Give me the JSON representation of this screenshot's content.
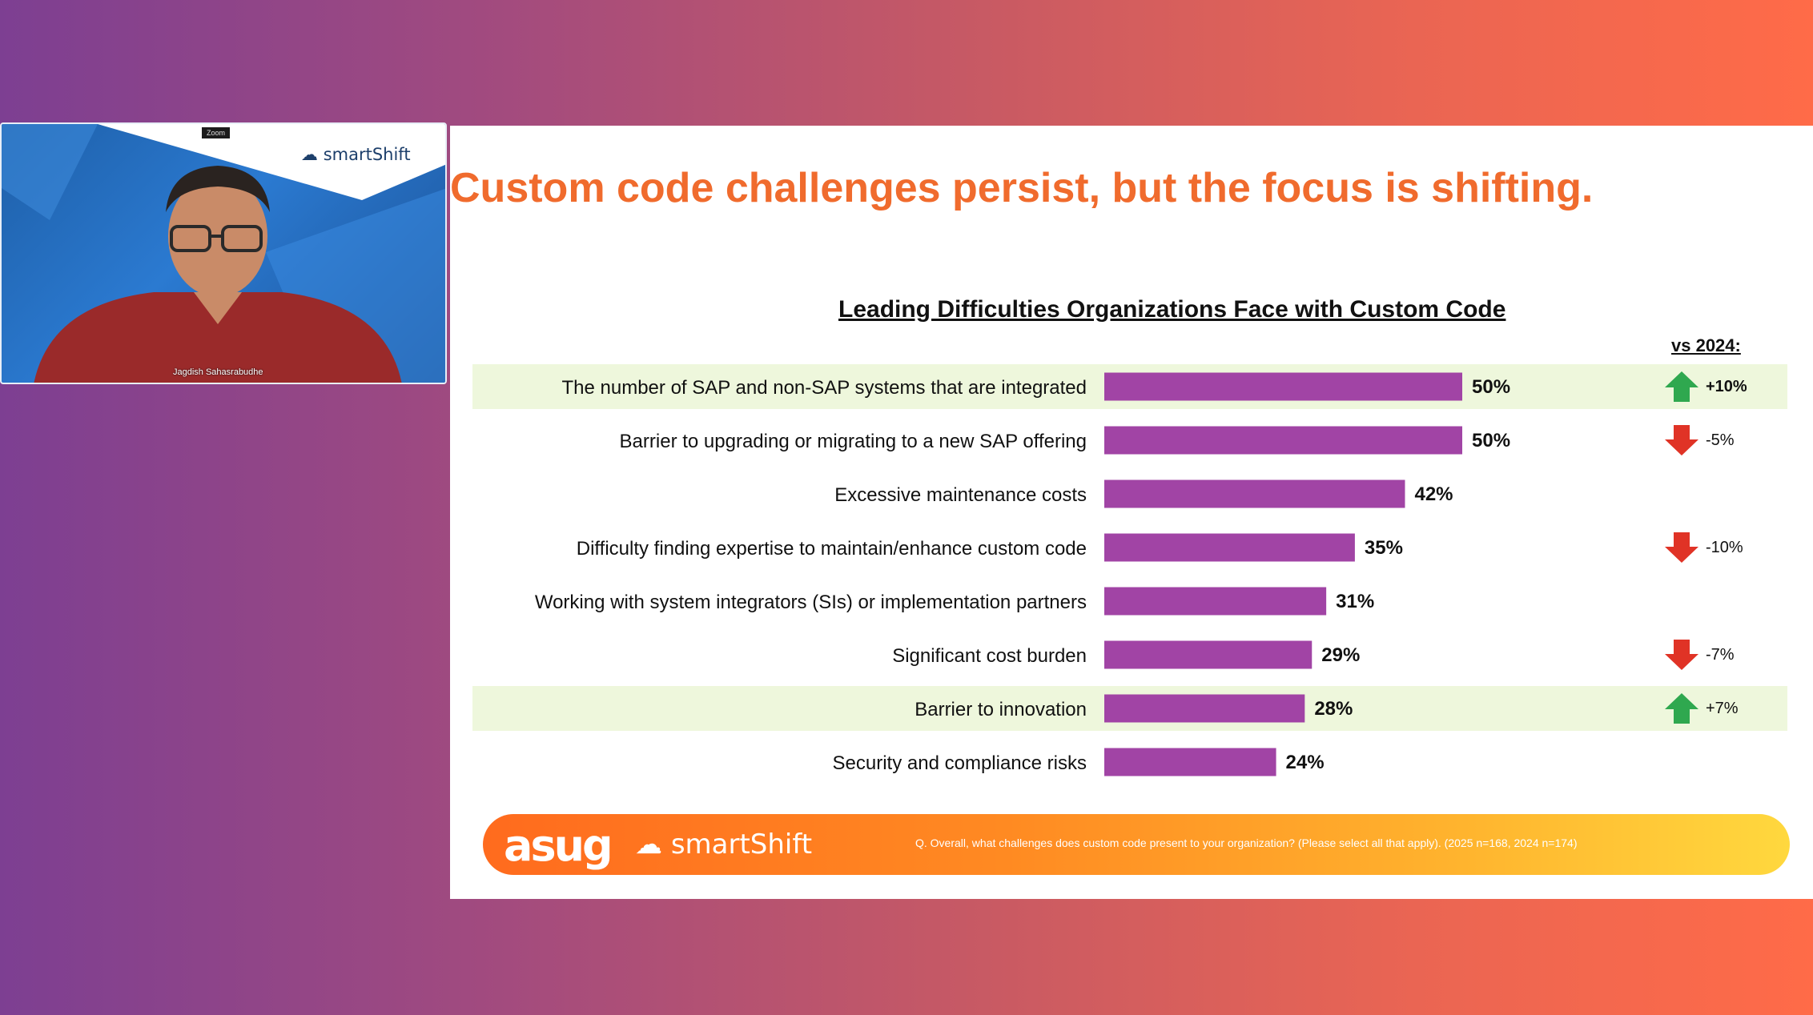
{
  "webcam": {
    "tag": "Zoom",
    "logo_text": "smartShift",
    "participant_name": "Jagdish Sahasrabudhe"
  },
  "slide": {
    "title": "Custom code challenges persist, but the focus is shifting.",
    "footer": {
      "org_logo": "asug",
      "partner_logo": "smartShift",
      "note": "Q. Overall, what challenges does custom code present to your organization? (Please select all that apply). (2025 n=168, 2024 n=174)"
    }
  },
  "colors": {
    "title": "#f06b2d",
    "bar": "#a144a5",
    "highlight_row": "#eef7dc",
    "up_arrow": "#2fa84f",
    "down_arrow": "#e03326"
  },
  "chart_data": {
    "type": "bar",
    "orientation": "horizontal",
    "title": "Leading Difficulties Organizations Face with Custom Code",
    "comparison_label": "vs 2024:",
    "xlim": [
      0,
      50
    ],
    "categories": [
      "The number of SAP and non-SAP systems that are integrated",
      "Barrier to upgrading or migrating to a new SAP offering",
      "Excessive maintenance costs",
      "Difficulty finding expertise to maintain/enhance custom code",
      "Working with system integrators (SIs) or implementation partners",
      "Significant cost burden",
      "Barrier to innovation",
      "Security and compliance risks"
    ],
    "values": [
      50,
      50,
      42,
      35,
      31,
      29,
      28,
      24
    ],
    "value_labels": [
      "50%",
      "50%",
      "42%",
      "35%",
      "31%",
      "29%",
      "28%",
      "24%"
    ],
    "highlighted": [
      true,
      false,
      false,
      false,
      false,
      false,
      true,
      false
    ],
    "changes": [
      {
        "direction": "up",
        "icon": "up-arrow-icon",
        "label": "+10%"
      },
      {
        "direction": "down",
        "icon": "down-arrow-icon",
        "label": "-5%"
      },
      null,
      {
        "direction": "down",
        "icon": "down-arrow-icon",
        "label": "-10%"
      },
      null,
      {
        "direction": "down",
        "icon": "down-arrow-icon",
        "label": "-7%"
      },
      {
        "direction": "up",
        "icon": "up-arrow-icon",
        "label": "+7%"
      },
      null
    ]
  }
}
